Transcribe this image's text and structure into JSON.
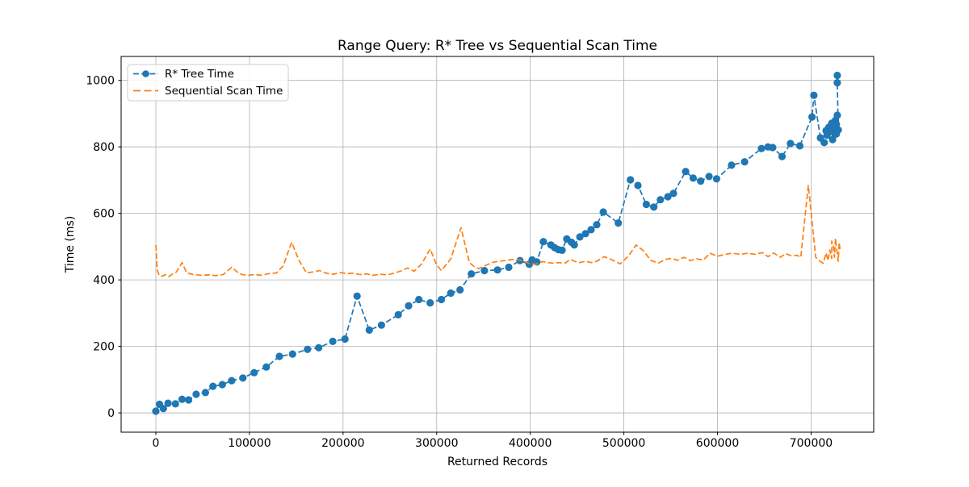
{
  "chart_data": {
    "type": "line",
    "title": "Range Query: R* Tree vs Sequential Scan Time",
    "xlabel": "Returned Records",
    "ylabel": "Time (ms)",
    "xlim": [
      -37100,
      766900
    ],
    "ylim": [
      -58,
      1072
    ],
    "grid": true,
    "legend_position": "upper-left",
    "x_ticks": [
      {
        "value": 0,
        "label": "0"
      },
      {
        "value": 100000,
        "label": "100000"
      },
      {
        "value": 200000,
        "label": "200000"
      },
      {
        "value": 300000,
        "label": "300000"
      },
      {
        "value": 400000,
        "label": "400000"
      },
      {
        "value": 500000,
        "label": "500000"
      },
      {
        "value": 600000,
        "label": "600000"
      },
      {
        "value": 700000,
        "label": "700000"
      }
    ],
    "y_ticks": [
      {
        "value": 0,
        "label": "0"
      },
      {
        "value": 200,
        "label": "200"
      },
      {
        "value": 400,
        "label": "400"
      },
      {
        "value": 600,
        "label": "600"
      },
      {
        "value": 800,
        "label": "800"
      },
      {
        "value": 1000,
        "label": "1000"
      }
    ],
    "series": [
      {
        "name": "R* Tree Time",
        "color": "#1f77b4",
        "linestyle": "dashed",
        "marker": "circle",
        "points": [
          [
            0,
            5
          ],
          [
            4000,
            26
          ],
          [
            8000,
            13
          ],
          [
            13000,
            29
          ],
          [
            21000,
            27
          ],
          [
            28000,
            41
          ],
          [
            35000,
            39
          ],
          [
            43000,
            56
          ],
          [
            53000,
            61
          ],
          [
            61000,
            80
          ],
          [
            71000,
            85
          ],
          [
            81000,
            97
          ],
          [
            93000,
            105
          ],
          [
            105000,
            121
          ],
          [
            118000,
            138
          ],
          [
            132000,
            170
          ],
          [
            146000,
            177
          ],
          [
            162000,
            191
          ],
          [
            174000,
            196
          ],
          [
            189000,
            215
          ],
          [
            202000,
            222
          ],
          [
            215000,
            351
          ],
          [
            228000,
            249
          ],
          [
            241000,
            264
          ],
          [
            259000,
            295
          ],
          [
            270000,
            322
          ],
          [
            281000,
            341
          ],
          [
            293000,
            331
          ],
          [
            305000,
            341
          ],
          [
            315000,
            360
          ],
          [
            325000,
            370
          ],
          [
            337000,
            418
          ],
          [
            351000,
            428
          ],
          [
            365000,
            430
          ],
          [
            377000,
            438
          ],
          [
            389000,
            458
          ],
          [
            399000,
            447
          ],
          [
            402000,
            460
          ],
          [
            407000,
            454
          ],
          [
            414000,
            515
          ],
          [
            422000,
            505
          ],
          [
            426000,
            497
          ],
          [
            430000,
            491
          ],
          [
            434000,
            489
          ],
          [
            439000,
            523
          ],
          [
            444000,
            513
          ],
          [
            447000,
            505
          ],
          [
            453000,
            529
          ],
          [
            459000,
            539
          ],
          [
            465000,
            551
          ],
          [
            471000,
            566
          ],
          [
            478000,
            604
          ],
          [
            494000,
            571
          ],
          [
            507000,
            701
          ],
          [
            515000,
            684
          ],
          [
            524000,
            627
          ],
          [
            532000,
            619
          ],
          [
            539000,
            641
          ],
          [
            547000,
            650
          ],
          [
            553000,
            660
          ],
          [
            566000,
            726
          ],
          [
            574000,
            706
          ],
          [
            582000,
            697
          ],
          [
            591000,
            711
          ],
          [
            599000,
            704
          ],
          [
            615000,
            745
          ],
          [
            629000,
            755
          ],
          [
            647000,
            795
          ],
          [
            654000,
            800
          ],
          [
            659000,
            798
          ],
          [
            669000,
            771
          ],
          [
            678000,
            810
          ],
          [
            688000,
            803
          ],
          [
            701000,
            890
          ],
          [
            703000,
            955
          ],
          [
            710000,
            827
          ],
          [
            714000,
            813
          ],
          [
            716000,
            849
          ],
          [
            717000,
            835
          ],
          [
            719000,
            859
          ],
          [
            721000,
            846
          ],
          [
            722000,
            871
          ],
          [
            723000,
            822
          ],
          [
            724000,
            856
          ],
          [
            726000,
            880
          ],
          [
            727000,
            839
          ],
          [
            727000,
            868
          ],
          [
            728000,
            895
          ],
          [
            729000,
            851
          ],
          [
            728000,
            993
          ],
          [
            728000,
            1015
          ]
        ]
      },
      {
        "name": "Sequential Scan Time",
        "color": "#ff7f0e",
        "linestyle": "dashed",
        "marker": "none",
        "points": [
          [
            0,
            505
          ],
          [
            1500,
            430
          ],
          [
            3500,
            413
          ],
          [
            7000,
            411
          ],
          [
            10000,
            416
          ],
          [
            14000,
            410
          ],
          [
            18000,
            418
          ],
          [
            22000,
            424
          ],
          [
            28000,
            452
          ],
          [
            33000,
            421
          ],
          [
            40000,
            416
          ],
          [
            48000,
            414
          ],
          [
            56000,
            415
          ],
          [
            64000,
            413
          ],
          [
            72000,
            416
          ],
          [
            81000,
            438
          ],
          [
            89000,
            419
          ],
          [
            97000,
            413
          ],
          [
            105000,
            416
          ],
          [
            113000,
            414
          ],
          [
            121000,
            419
          ],
          [
            129000,
            421
          ],
          [
            136000,
            442
          ],
          [
            145000,
            513
          ],
          [
            153000,
            458
          ],
          [
            161000,
            421
          ],
          [
            168000,
            424
          ],
          [
            175000,
            428
          ],
          [
            182000,
            420
          ],
          [
            190000,
            417
          ],
          [
            197000,
            422
          ],
          [
            204000,
            419
          ],
          [
            211000,
            420
          ],
          [
            218000,
            416
          ],
          [
            225000,
            418
          ],
          [
            232000,
            414
          ],
          [
            240000,
            417
          ],
          [
            248000,
            415
          ],
          [
            255000,
            421
          ],
          [
            262000,
            427
          ],
          [
            269000,
            436
          ],
          [
            276000,
            426
          ],
          [
            284000,
            448
          ],
          [
            293000,
            493
          ],
          [
            300000,
            445
          ],
          [
            305000,
            428
          ],
          [
            315000,
            463
          ],
          [
            326000,
            557
          ],
          [
            335000,
            452
          ],
          [
            340000,
            440
          ],
          [
            345000,
            434
          ],
          [
            352000,
            443
          ],
          [
            359000,
            452
          ],
          [
            366000,
            456
          ],
          [
            373000,
            458
          ],
          [
            380000,
            461
          ],
          [
            386000,
            461
          ],
          [
            392000,
            458
          ],
          [
            399000,
            449
          ],
          [
            406000,
            447
          ],
          [
            413000,
            455
          ],
          [
            419000,
            452
          ],
          [
            425000,
            450
          ],
          [
            431000,
            452
          ],
          [
            437000,
            450
          ],
          [
            443000,
            462
          ],
          [
            448000,
            455
          ],
          [
            453000,
            452
          ],
          [
            459000,
            456
          ],
          [
            465000,
            452
          ],
          [
            471000,
            456
          ],
          [
            479000,
            470
          ],
          [
            487000,
            461
          ],
          [
            496000,
            448
          ],
          [
            505000,
            472
          ],
          [
            513000,
            505
          ],
          [
            521000,
            487
          ],
          [
            529000,
            458
          ],
          [
            537000,
            451
          ],
          [
            545000,
            462
          ],
          [
            551000,
            465
          ],
          [
            557000,
            459
          ],
          [
            564000,
            468
          ],
          [
            571000,
            458
          ],
          [
            578000,
            463
          ],
          [
            585000,
            460
          ],
          [
            592000,
            480
          ],
          [
            600000,
            471
          ],
          [
            608000,
            477
          ],
          [
            616000,
            480
          ],
          [
            624000,
            477
          ],
          [
            632000,
            480
          ],
          [
            640000,
            477
          ],
          [
            648000,
            482
          ],
          [
            654000,
            470
          ],
          [
            660000,
            481
          ],
          [
            667000,
            468
          ],
          [
            673000,
            479
          ],
          [
            679000,
            472
          ],
          [
            685000,
            474
          ],
          [
            689000,
            468
          ],
          [
            697000,
            684
          ],
          [
            705000,
            468
          ],
          [
            710000,
            455
          ],
          [
            713000,
            450
          ],
          [
            716000,
            481
          ],
          [
            718000,
            458
          ],
          [
            720000,
            490
          ],
          [
            722000,
            464
          ],
          [
            722000,
            517
          ],
          [
            724000,
            497
          ],
          [
            725000,
            468
          ],
          [
            726000,
            525
          ],
          [
            727000,
            501
          ],
          [
            729000,
            456
          ],
          [
            730000,
            513
          ],
          [
            731000,
            489
          ]
        ]
      }
    ],
    "style": {
      "grid_color": "#b0b0b0",
      "spine_color": "#000000",
      "background": "#ffffff"
    }
  }
}
